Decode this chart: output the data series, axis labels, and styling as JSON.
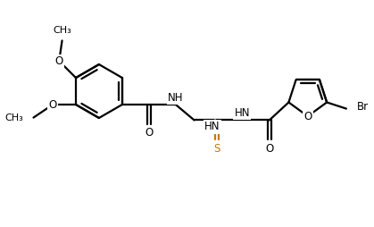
{
  "bg_color": "#ffffff",
  "bond_color": "#000000",
  "s_color": "#c8780a",
  "lw": 1.6,
  "figsize": [
    4.19,
    2.54
  ],
  "dpi": 100,
  "xlim": [
    0,
    10
  ],
  "ylim": [
    0,
    6
  ],
  "ring_r": 0.72,
  "furan_r": 0.48,
  "font_size": 8.5
}
